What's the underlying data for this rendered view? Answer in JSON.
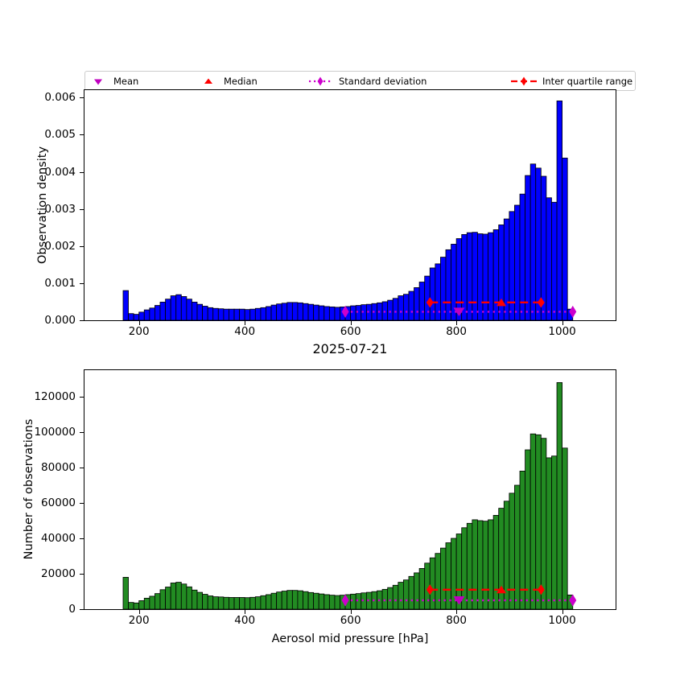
{
  "figure": {
    "background": "#ffffff"
  },
  "legend": {
    "items": [
      {
        "label": "Mean",
        "marker": "triangle-down",
        "color": "#bf00bf"
      },
      {
        "label": "Median",
        "marker": "triangle-up",
        "color": "#ff0000"
      },
      {
        "label": "Standard deviation",
        "marker": "diamond-dotted-line",
        "color": "#cc00cc"
      },
      {
        "label": "Inter quartile range",
        "marker": "diamond-dashed-line",
        "color": "#ff0000"
      }
    ]
  },
  "chart_data": [
    {
      "type": "bar",
      "id": "observation-density",
      "title": "",
      "xlabel": "",
      "ylabel": "Observation density",
      "bar_color": "#0000ff",
      "bar_edge_color": "#000000",
      "bin_start": 170,
      "bin_width": 10,
      "xlim": [
        97,
        1101
      ],
      "ylim": [
        0,
        0.0062
      ],
      "xticks": [
        200,
        400,
        600,
        800,
        1000
      ],
      "yticks": [
        0,
        0.001,
        0.002,
        0.003,
        0.004,
        0.005,
        0.006
      ],
      "ytick_labels": [
        "0.000",
        "0.001",
        "0.002",
        "0.003",
        "0.004",
        "0.005",
        "0.006"
      ],
      "values": [
        0.0008,
        0.00018,
        0.00016,
        0.00022,
        0.00028,
        0.00033,
        0.0004,
        0.00049,
        0.00057,
        0.00066,
        0.00069,
        0.00064,
        0.00057,
        0.00049,
        0.00043,
        0.00038,
        0.00034,
        0.00032,
        0.00031,
        0.0003,
        0.0003,
        0.0003,
        0.0003,
        0.00029,
        0.0003,
        0.00032,
        0.00034,
        0.00037,
        0.00041,
        0.00044,
        0.00046,
        0.00048,
        0.00048,
        0.00047,
        0.00045,
        0.00043,
        0.00041,
        0.00039,
        0.00037,
        0.00036,
        0.00035,
        0.00036,
        0.00037,
        0.00039,
        0.0004,
        0.00042,
        0.00043,
        0.00045,
        0.00047,
        0.0005,
        0.00054,
        0.00059,
        0.00066,
        0.0007,
        0.00078,
        0.00088,
        0.00103,
        0.00119,
        0.00141,
        0.00152,
        0.0017,
        0.0019,
        0.00205,
        0.0022,
        0.00231,
        0.00236,
        0.00237,
        0.00233,
        0.00232,
        0.00236,
        0.00244,
        0.00257,
        0.00273,
        0.00293,
        0.0031,
        0.0034,
        0.0039,
        0.00421,
        0.0041,
        0.00388,
        0.0033,
        0.00318,
        0.00591,
        0.00437,
        0.0003
      ],
      "overlays": {
        "mean": {
          "x": 805,
          "y": 0.00023,
          "color": "#bf00bf"
        },
        "median": {
          "x": 885,
          "y": 0.00048,
          "color": "#ff0000"
        },
        "std_range": {
          "x1": 590,
          "x2": 1020,
          "y": 0.00023,
          "color": "#cc00cc"
        },
        "iqr_range": {
          "x1": 750,
          "x2": 960,
          "y": 0.00048,
          "color": "#ff0000"
        }
      }
    },
    {
      "type": "bar",
      "id": "number-of-observations",
      "title": "2025-07-21",
      "xlabel": "Aerosol mid pressure [hPa]",
      "ylabel": "Number of observations",
      "bar_color": "#228b22",
      "bar_edge_color": "#000000",
      "bin_start": 170,
      "bin_width": 10,
      "xlim": [
        97,
        1101
      ],
      "ylim": [
        0,
        135000
      ],
      "xticks": [
        200,
        400,
        600,
        800,
        1000
      ],
      "yticks": [
        0,
        20000,
        40000,
        60000,
        80000,
        100000,
        120000
      ],
      "ytick_labels": [
        "0",
        "20000",
        "40000",
        "60000",
        "80000",
        "100000",
        "120000"
      ],
      "values": [
        18000,
        3800,
        3500,
        4800,
        6200,
        7300,
        8800,
        11000,
        12500,
        14800,
        15200,
        14200,
        12600,
        10800,
        9500,
        8400,
        7500,
        7000,
        6900,
        6700,
        6600,
        6600,
        6600,
        6500,
        6700,
        7000,
        7600,
        8200,
        9000,
        9700,
        10200,
        10600,
        10600,
        10400,
        9900,
        9400,
        9000,
        8600,
        8200,
        7900,
        7700,
        7900,
        8200,
        8500,
        8800,
        9200,
        9500,
        9900,
        10400,
        11200,
        12200,
        13500,
        15200,
        16500,
        18500,
        20500,
        23000,
        26000,
        29000,
        31500,
        34500,
        37500,
        40000,
        42500,
        46000,
        48500,
        50500,
        50000,
        49700,
        50500,
        53000,
        57000,
        61000,
        65500,
        70000,
        78000,
        90000,
        99000,
        98500,
        96500,
        85500,
        86500,
        128000,
        91000,
        8000
      ],
      "overlays": {
        "mean": {
          "x": 805,
          "y": 5000,
          "color": "#bf00bf"
        },
        "median": {
          "x": 885,
          "y": 11000,
          "color": "#ff0000"
        },
        "std_range": {
          "x1": 590,
          "x2": 1020,
          "y": 5000,
          "color": "#cc00cc"
        },
        "iqr_range": {
          "x1": 750,
          "x2": 960,
          "y": 11000,
          "color": "#ff0000"
        }
      }
    }
  ]
}
